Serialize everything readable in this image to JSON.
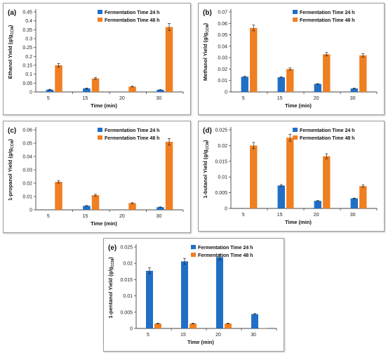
{
  "chart_data": [
    {
      "id": "a",
      "type": "bar",
      "panel_label": "(a)",
      "categories": [
        "5",
        "15",
        "20",
        "30"
      ],
      "xlabel": "Time (min)",
      "ylabel_main": "Ethanol Yield  (g/g",
      "ylabel_sub": "CCM",
      "ylabel_close": ")",
      "ylim": [
        0,
        0.45
      ],
      "yticks": [
        0,
        0.05,
        0.1,
        0.15,
        0.2,
        0.25,
        0.3,
        0.35,
        0.4,
        0.45
      ],
      "ytick_labels": [
        "0",
        "0.05",
        "0.1",
        "0.15",
        "0.2",
        "0.25",
        "0.3",
        "0.35",
        "0.4",
        "0.45"
      ],
      "legend_position": "top-right",
      "series": [
        {
          "name": "Fermentation Time  24 h",
          "color": "#1f6fc6",
          "values": [
            0.013,
            0.02,
            0,
            0.012
          ],
          "errors": [
            0.002,
            0.002,
            0,
            0.001
          ]
        },
        {
          "name": "Fermentation Time  48 h",
          "color": "#f07f22",
          "values": [
            0.15,
            0.076,
            0.03,
            0.365
          ],
          "errors": [
            0.01,
            0.005,
            0.002,
            0.02
          ]
        }
      ]
    },
    {
      "id": "b",
      "type": "bar",
      "panel_label": "(b)",
      "categories": [
        "5",
        "15",
        "20",
        "30"
      ],
      "xlabel": "Time (min)",
      "ylabel_main": "Methanol Yield  (g/g",
      "ylabel_sub": "CCM",
      "ylabel_close": ")",
      "ylim": [
        0,
        0.07
      ],
      "yticks": [
        0,
        0.01,
        0.02,
        0.03,
        0.04,
        0.05,
        0.06,
        0.07
      ],
      "ytick_labels": [
        "0",
        "0.01",
        "0.02",
        "0.03",
        "0.04",
        "0.05",
        "0.06",
        "0.07"
      ],
      "legend_position": "top-right",
      "series": [
        {
          "name": "Fermentation Time  24 h",
          "color": "#1f6fc6",
          "values": [
            0.0133,
            0.0128,
            0.007,
            0.003
          ],
          "errors": [
            0.0004,
            0.0004,
            0.0003,
            0.0003
          ]
        },
        {
          "name": "Fermentation Time  48 h",
          "color": "#f07f22",
          "values": [
            0.056,
            0.02,
            0.033,
            0.032
          ],
          "errors": [
            0.0025,
            0.001,
            0.0015,
            0.0015
          ]
        }
      ]
    },
    {
      "id": "c",
      "type": "bar",
      "panel_label": "(c)",
      "categories": [
        "5",
        "15",
        "20",
        "30"
      ],
      "xlabel": "Time (min)",
      "ylabel_main": "1-propanol Yield  (g/g",
      "ylabel_sub": "CCM",
      "ylabel_close": ")",
      "ylim": [
        0,
        0.06
      ],
      "yticks": [
        0,
        0.01,
        0.02,
        0.03,
        0.04,
        0.05,
        0.06
      ],
      "ytick_labels": [
        "0",
        "0.01",
        "0.02",
        "0.03",
        "0.04",
        "0.05",
        "0.06"
      ],
      "legend_position": "top-right",
      "series": [
        {
          "name": "Fermentation Time  24 h",
          "color": "#1f6fc6",
          "values": [
            0,
            0.003,
            0,
            0.002
          ],
          "errors": [
            0,
            0.0002,
            0,
            0.0002
          ]
        },
        {
          "name": "Fermentation Time  48 h",
          "color": "#f07f22",
          "values": [
            0.021,
            0.011,
            0.005,
            0.051
          ],
          "errors": [
            0.001,
            0.0007,
            0.0003,
            0.0025
          ]
        }
      ]
    },
    {
      "id": "d",
      "type": "bar",
      "panel_label": "(d)",
      "categories": [
        "5",
        "15",
        "20",
        "30"
      ],
      "xlabel": "Time (min)",
      "ylabel_main": "1-butanol Yield  (g/g",
      "ylabel_sub": "CCM",
      "ylabel_close": ")",
      "ylim": [
        0,
        0.025
      ],
      "yticks": [
        0,
        0.005,
        0.01,
        0.015,
        0.02,
        0.025
      ],
      "ytick_labels": [
        "0",
        "0.005",
        "0.01",
        "0.015",
        "0.02",
        "0.025"
      ],
      "legend_position": "top-right",
      "series": [
        {
          "name": "Fermentation Time  24 h",
          "color": "#1f6fc6",
          "values": [
            0,
            0.0073,
            0.0024,
            0.0032
          ],
          "errors": [
            0,
            0.0003,
            0.0001,
            0.0001
          ]
        },
        {
          "name": "Fermentation Time  48 h",
          "color": "#f07f22",
          "values": [
            0.02,
            0.0225,
            0.0166,
            0.0071
          ],
          "errors": [
            0.001,
            0.0011,
            0.0008,
            0.0004
          ]
        }
      ]
    },
    {
      "id": "e",
      "type": "bar",
      "panel_label": "(e)",
      "categories": [
        "5",
        "15",
        "20",
        "30"
      ],
      "xlabel": "Time (min)",
      "ylabel_main": "1-pentanol Yield  (g/g",
      "ylabel_sub": "CCM",
      "ylabel_close": ")",
      "ylim": [
        0,
        0.025
      ],
      "yticks": [
        0,
        0.005,
        0.01,
        0.015,
        0.02,
        0.025
      ],
      "ytick_labels": [
        "0",
        "0.005",
        "0.01",
        "0.015",
        "0.02",
        "0.025"
      ],
      "legend_position": "top-right",
      "series": [
        {
          "name": "Fermentation Time  24 h",
          "color": "#1f6fc6",
          "values": [
            0.0177,
            0.0206,
            0.0219,
            0.0044
          ],
          "errors": [
            0.0009,
            0.0009,
            0.0009,
            0.0002
          ]
        },
        {
          "name": "Fermentation Time  48 h",
          "color": "#f07f22",
          "values": [
            0.0015,
            0.0015,
            0.0015,
            0.0001
          ],
          "errors": [
            0.0001,
            0.0001,
            0.0001,
            0
          ]
        }
      ]
    }
  ]
}
